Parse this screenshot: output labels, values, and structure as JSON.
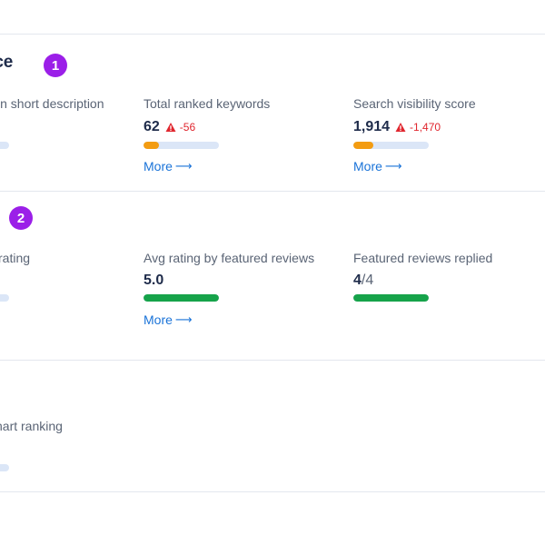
{
  "sections": [
    {
      "title": "nce",
      "badge": "1",
      "metrics": [
        {
          "label": "in short description"
        },
        {
          "label": "Total ranked keywords",
          "value": "62",
          "delta": "-56",
          "progress": 0.2,
          "bar_color": "#f39c12",
          "more": "More"
        },
        {
          "label": "Search visibility score",
          "value": "1,914",
          "delta": "-1,470",
          "progress": 0.27,
          "bar_color": "#f39c12",
          "more": "More"
        }
      ]
    },
    {
      "badge": "2",
      "metrics": [
        {
          "label": "rating"
        },
        {
          "label": "Avg rating by featured reviews",
          "value": "5.0",
          "progress": 1.0,
          "bar_color": "#16a34a",
          "more": "More"
        },
        {
          "label": "Featured reviews replied",
          "value": "4",
          "value_suffix": "/4",
          "progress": 1.0,
          "bar_color": "#16a34a"
        }
      ]
    },
    {
      "metrics": [
        {
          "label": "hart ranking"
        }
      ]
    }
  ],
  "colors": {
    "accent": "#9b1fe8",
    "link": "#1a73d8",
    "warning": "#e0262e",
    "bar_track": "#dbe6f7"
  },
  "icons": {
    "warning": "warning-triangle-icon",
    "arrow": "arrow-right-icon"
  }
}
